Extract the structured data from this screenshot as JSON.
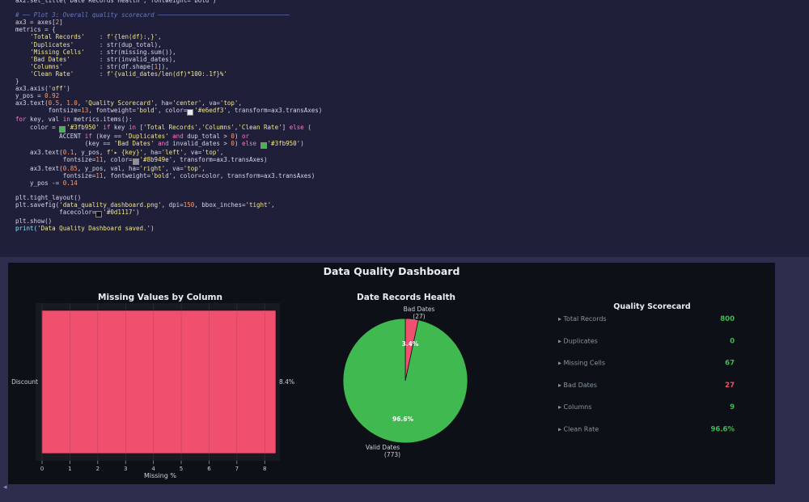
{
  "code_lines": [
    {
      "segments": [
        {
          "t": "ax2.set_title('Date Records Health', fontweight='bold')",
          "c": ""
        }
      ]
    },
    {
      "segments": [
        {
          "t": "",
          "c": ""
        }
      ]
    },
    {
      "segments": [
        {
          "t": "# ── Plot 3: Overall quality scorecard ────────────────────────────────────",
          "c": "cm"
        }
      ]
    },
    {
      "segments": [
        {
          "t": "ax3 = axes[",
          "c": ""
        },
        {
          "t": "2",
          "c": "nm"
        },
        {
          "t": "]",
          "c": ""
        }
      ]
    },
    {
      "segments": [
        {
          "t": "metrics = {",
          "c": ""
        }
      ]
    },
    {
      "segments": [
        {
          "t": "    ",
          "c": ""
        },
        {
          "t": "'Total Records'",
          "c": "st"
        },
        {
          "t": "    : ",
          "c": ""
        },
        {
          "t": "f'{len(df):,}'",
          "c": "st"
        },
        {
          "t": ",",
          "c": ""
        }
      ]
    },
    {
      "segments": [
        {
          "t": "    ",
          "c": ""
        },
        {
          "t": "'Duplicates'",
          "c": "st"
        },
        {
          "t": "       : str(dup_total),",
          "c": ""
        }
      ]
    },
    {
      "segments": [
        {
          "t": "    ",
          "c": ""
        },
        {
          "t": "'Missing Cells'",
          "c": "st"
        },
        {
          "t": "    : str(missing.sum()),",
          "c": ""
        }
      ]
    },
    {
      "segments": [
        {
          "t": "    ",
          "c": ""
        },
        {
          "t": "'Bad Dates'",
          "c": "st"
        },
        {
          "t": "        : str(invalid_dates),",
          "c": ""
        }
      ]
    },
    {
      "segments": [
        {
          "t": "    ",
          "c": ""
        },
        {
          "t": "'Columns'",
          "c": "st"
        },
        {
          "t": "          : str(df.shape[",
          "c": ""
        },
        {
          "t": "1",
          "c": "nm"
        },
        {
          "t": "]),",
          "c": ""
        }
      ]
    },
    {
      "segments": [
        {
          "t": "    ",
          "c": ""
        },
        {
          "t": "'Clean Rate'",
          "c": "st"
        },
        {
          "t": "       : ",
          "c": ""
        },
        {
          "t": "f'{valid_dates/len(df)*100:.1f}%'",
          "c": "st"
        }
      ]
    },
    {
      "segments": [
        {
          "t": "}",
          "c": ""
        }
      ]
    },
    {
      "segments": [
        {
          "t": "ax3.axis(",
          "c": ""
        },
        {
          "t": "'off'",
          "c": "st"
        },
        {
          "t": ")",
          "c": ""
        }
      ]
    },
    {
      "segments": [
        {
          "t": "y_pos = ",
          "c": ""
        },
        {
          "t": "0.92",
          "c": "nm"
        }
      ]
    },
    {
      "segments": [
        {
          "t": "ax3.text(",
          "c": ""
        },
        {
          "t": "0.5",
          "c": "nm"
        },
        {
          "t": ", ",
          "c": ""
        },
        {
          "t": "1.0",
          "c": "nm"
        },
        {
          "t": ", ",
          "c": ""
        },
        {
          "t": "'Quality Scorecard'",
          "c": "st"
        },
        {
          "t": ", ha=",
          "c": ""
        },
        {
          "t": "'center'",
          "c": "st"
        },
        {
          "t": ", va=",
          "c": ""
        },
        {
          "t": "'top'",
          "c": "st"
        },
        {
          "t": ",",
          "c": ""
        }
      ]
    },
    {
      "segments": [
        {
          "t": "         fontsize=",
          "c": ""
        },
        {
          "t": "13",
          "c": "nm"
        },
        {
          "t": ", fontweight=",
          "c": ""
        },
        {
          "t": "'bold'",
          "c": "st"
        },
        {
          "t": ", color=",
          "c": ""
        },
        {
          "t": "■",
          "c": "sw-e6edf3"
        },
        {
          "t": "'#e6edf3'",
          "c": "st"
        },
        {
          "t": ", transform=ax3.transAxes)",
          "c": ""
        }
      ]
    },
    {
      "segments": [
        {
          "t": "for",
          "c": "kw"
        },
        {
          "t": " key, val ",
          "c": ""
        },
        {
          "t": "in",
          "c": "kw"
        },
        {
          "t": " metrics.items():",
          "c": ""
        }
      ]
    },
    {
      "segments": [
        {
          "t": "    color = ",
          "c": ""
        },
        {
          "t": "■",
          "c": "sw-3fb950"
        },
        {
          "t": "'#3fb950'",
          "c": "st"
        },
        {
          "t": " if ",
          "c": "kw"
        },
        {
          "t": "key ",
          "c": ""
        },
        {
          "t": "in",
          "c": "kw"
        },
        {
          "t": " [",
          "c": ""
        },
        {
          "t": "'Total Records'",
          "c": "st"
        },
        {
          "t": ",",
          "c": ""
        },
        {
          "t": "'Columns'",
          "c": "st"
        },
        {
          "t": ",",
          "c": ""
        },
        {
          "t": "'Clean Rate'",
          "c": "st"
        },
        {
          "t": "] ",
          "c": ""
        },
        {
          "t": "else",
          "c": "kw"
        },
        {
          "t": " (",
          "c": ""
        }
      ]
    },
    {
      "segments": [
        {
          "t": "            ACCENT ",
          "c": ""
        },
        {
          "t": "if",
          "c": "kw"
        },
        {
          "t": " (key == ",
          "c": ""
        },
        {
          "t": "'Duplicates'",
          "c": "st"
        },
        {
          "t": " and",
          "c": "kw"
        },
        {
          "t": " dup_total > ",
          "c": ""
        },
        {
          "t": "0",
          "c": "nm"
        },
        {
          "t": ") ",
          "c": ""
        },
        {
          "t": "or",
          "c": "kw"
        }
      ]
    },
    {
      "segments": [
        {
          "t": "                   (key == ",
          "c": ""
        },
        {
          "t": "'Bad Dates'",
          "c": "st"
        },
        {
          "t": " and",
          "c": "kw"
        },
        {
          "t": " invalid_dates > ",
          "c": ""
        },
        {
          "t": "0",
          "c": "nm"
        },
        {
          "t": ") ",
          "c": ""
        },
        {
          "t": "else",
          "c": "kw"
        },
        {
          "t": " ",
          "c": ""
        },
        {
          "t": "■",
          "c": "sw-3fb950"
        },
        {
          "t": "'#3fb950'",
          "c": "st"
        },
        {
          "t": ")",
          "c": ""
        }
      ]
    },
    {
      "segments": [
        {
          "t": "    ax3.text(",
          "c": ""
        },
        {
          "t": "0.1",
          "c": "nm"
        },
        {
          "t": ", y_pos, ",
          "c": ""
        },
        {
          "t": "f'▸ {key}'",
          "c": "st"
        },
        {
          "t": ", ha=",
          "c": ""
        },
        {
          "t": "'left'",
          "c": "st"
        },
        {
          "t": ", va=",
          "c": ""
        },
        {
          "t": "'top'",
          "c": "st"
        },
        {
          "t": ",",
          "c": ""
        }
      ]
    },
    {
      "segments": [
        {
          "t": "             fontsize=",
          "c": ""
        },
        {
          "t": "11",
          "c": "nm"
        },
        {
          "t": ", color=",
          "c": ""
        },
        {
          "t": "■",
          "c": "sw-8b949e"
        },
        {
          "t": "'#8b949e'",
          "c": "st"
        },
        {
          "t": ", transform=ax3.transAxes)",
          "c": ""
        }
      ]
    },
    {
      "segments": [
        {
          "t": "    ax3.text(",
          "c": ""
        },
        {
          "t": "0.85",
          "c": "nm"
        },
        {
          "t": ", y_pos, val, ha=",
          "c": ""
        },
        {
          "t": "'right'",
          "c": "st"
        },
        {
          "t": ", va=",
          "c": ""
        },
        {
          "t": "'top'",
          "c": "st"
        },
        {
          "t": ",",
          "c": ""
        }
      ]
    },
    {
      "segments": [
        {
          "t": "             fontsize=",
          "c": ""
        },
        {
          "t": "11",
          "c": "nm"
        },
        {
          "t": ", fontweight=",
          "c": ""
        },
        {
          "t": "'bold'",
          "c": "st"
        },
        {
          "t": ", color=color, transform=ax3.transAxes)",
          "c": ""
        }
      ]
    },
    {
      "segments": [
        {
          "t": "    y_pos -= ",
          "c": ""
        },
        {
          "t": "0.14",
          "c": "nm"
        }
      ]
    },
    {
      "segments": [
        {
          "t": "",
          "c": ""
        }
      ]
    },
    {
      "segments": [
        {
          "t": "plt.tight_layout()",
          "c": ""
        }
      ]
    },
    {
      "segments": [
        {
          "t": "plt.savefig(",
          "c": ""
        },
        {
          "t": "'data_quality_dashboard.png'",
          "c": "st"
        },
        {
          "t": ", dpi=",
          "c": ""
        },
        {
          "t": "150",
          "c": "nm"
        },
        {
          "t": ", bbox_inches=",
          "c": ""
        },
        {
          "t": "'tight'",
          "c": "st"
        },
        {
          "t": ",",
          "c": ""
        }
      ]
    },
    {
      "segments": [
        {
          "t": "            facecolor=",
          "c": ""
        },
        {
          "t": "■",
          "c": "sw-0d1117"
        },
        {
          "t": "'#0d1117'",
          "c": "st"
        },
        {
          "t": ")",
          "c": ""
        }
      ]
    },
    {
      "segments": [
        {
          "t": "plt.show()",
          "c": ""
        }
      ]
    },
    {
      "segments": [
        {
          "t": "print(",
          "c": "fn"
        },
        {
          "t": "'Data Quality Dashboard saved.'",
          "c": "st"
        },
        {
          "t": ")",
          "c": ""
        }
      ]
    }
  ],
  "dashboard": {
    "title": "Data Quality Dashboard"
  },
  "chart_data": [
    {
      "type": "bar",
      "orientation": "horizontal",
      "title": "Missing Values by Column",
      "xlabel": "Missing %",
      "categories": [
        "Discount"
      ],
      "values": [
        8.4
      ],
      "value_labels": [
        "8.4%"
      ],
      "xlim": [
        0,
        8.4
      ],
      "xticks": [
        "0",
        "1",
        "2",
        "3",
        "4",
        "5",
        "6",
        "7",
        "8"
      ],
      "grid": true,
      "bar_color": "#f0506e"
    },
    {
      "type": "pie",
      "title": "Date Records Health",
      "slices": [
        {
          "label": "Valid Dates",
          "count_label": "(773)",
          "value": 773,
          "pct_label": "96.6%",
          "color": "#3fb950"
        },
        {
          "label": "Bad Dates",
          "count_label": "(27)",
          "value": 27,
          "pct_label": "3.4%",
          "color": "#f0506e"
        }
      ]
    },
    {
      "type": "table",
      "title": "Quality Scorecard",
      "rows": [
        {
          "key": "▸ Total Records",
          "value": "800",
          "color": "#3fb950"
        },
        {
          "key": "▸ Duplicates",
          "value": "0",
          "color": "#3fb950"
        },
        {
          "key": "▸ Missing Cells",
          "value": "67",
          "color": "#3fb950"
        },
        {
          "key": "▸ Bad Dates",
          "value": "27",
          "color": "#f0506e"
        },
        {
          "key": "▸ Columns",
          "value": "9",
          "color": "#3fb950"
        },
        {
          "key": "▸ Clean Rate",
          "value": "96.6%",
          "color": "#3fb950"
        }
      ]
    }
  ],
  "output_collapse_icon": "◂"
}
